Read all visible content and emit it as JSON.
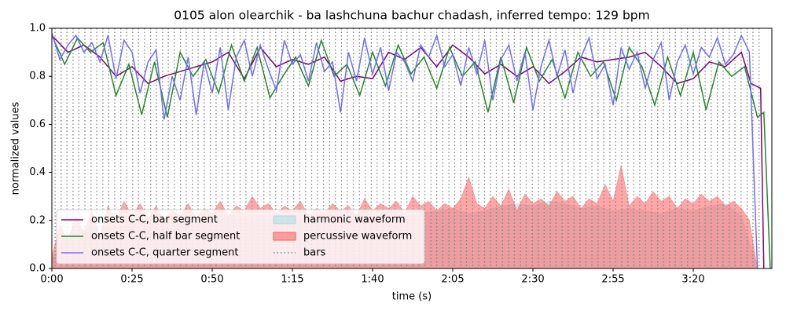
{
  "chart_data": {
    "type": "line",
    "title": "0105 alon olearchik - ba lashchuna bachur chadash, inferred tempo: 129 bpm",
    "xlabel": "time (s)",
    "ylabel": "normalized values",
    "xlim": [
      0,
      224.5
    ],
    "ylim": [
      0,
      1
    ],
    "xticks": [
      {
        "value": 0,
        "label": "0:00"
      },
      {
        "value": 25,
        "label": "0:25"
      },
      {
        "value": 50,
        "label": "0:50"
      },
      {
        "value": 75,
        "label": "1:15"
      },
      {
        "value": 100,
        "label": "1:40"
      },
      {
        "value": 125,
        "label": "2:05"
      },
      {
        "value": 150,
        "label": "2:30"
      },
      {
        "value": 175,
        "label": "2:55"
      },
      {
        "value": 200,
        "label": "3:20"
      }
    ],
    "yticks": [
      {
        "value": 0,
        "label": "0.0"
      },
      {
        "value": 0.2,
        "label": "0.2"
      },
      {
        "value": 0.4,
        "label": "0.4"
      },
      {
        "value": 0.6,
        "label": "0.6"
      },
      {
        "value": 0.8,
        "label": "0.8"
      },
      {
        "value": 1,
        "label": "1.0"
      }
    ],
    "legend": "lower left",
    "series": [
      {
        "name": "onsets C-C, bar segment",
        "kind": "line",
        "color": "#800080",
        "x": [
          0,
          5,
          10,
          15,
          20,
          25,
          30,
          35,
          40,
          45,
          50,
          55,
          60,
          65,
          70,
          75,
          80,
          85,
          90,
          95,
          100,
          105,
          110,
          115,
          120,
          125,
          130,
          135,
          140,
          145,
          150,
          155,
          160,
          165,
          170,
          175,
          180,
          185,
          190,
          195,
          200,
          205,
          210,
          215,
          218,
          221,
          222
        ],
        "values": [
          0.97,
          0.9,
          0.93,
          0.88,
          0.8,
          0.84,
          0.77,
          0.8,
          0.82,
          0.84,
          0.86,
          0.9,
          0.79,
          0.92,
          0.84,
          0.87,
          0.85,
          0.88,
          0.78,
          0.8,
          0.79,
          0.9,
          0.87,
          0.92,
          0.84,
          0.93,
          0.88,
          0.81,
          0.85,
          0.8,
          0.84,
          0.77,
          0.82,
          0.88,
          0.86,
          0.87,
          0.88,
          0.9,
          0.84,
          0.77,
          0.79,
          0.86,
          0.84,
          0.9,
          0.77,
          0.75,
          0.0
        ]
      },
      {
        "name": "onsets C-C, half bar segment",
        "kind": "line",
        "color": "#228b22",
        "x": [
          0,
          4,
          8,
          12,
          16,
          20,
          24,
          28,
          32,
          36,
          40,
          44,
          48,
          52,
          56,
          60,
          64,
          68,
          72,
          76,
          80,
          84,
          88,
          92,
          96,
          100,
          104,
          108,
          112,
          116,
          120,
          124,
          128,
          132,
          136,
          140,
          144,
          148,
          152,
          156,
          160,
          164,
          168,
          172,
          176,
          180,
          184,
          188,
          192,
          196,
          200,
          204,
          208,
          212,
          216,
          220,
          222,
          224
        ],
        "values": [
          0.97,
          0.85,
          0.96,
          0.9,
          0.94,
          0.72,
          0.85,
          0.64,
          0.86,
          0.63,
          0.9,
          0.8,
          0.87,
          0.73,
          0.93,
          0.78,
          0.92,
          0.71,
          0.8,
          0.88,
          0.76,
          0.95,
          0.8,
          0.85,
          0.72,
          0.9,
          0.76,
          0.93,
          0.81,
          0.88,
          0.75,
          0.92,
          0.8,
          0.86,
          0.65,
          0.88,
          0.69,
          0.92,
          0.78,
          0.87,
          0.71,
          0.9,
          0.8,
          0.86,
          0.7,
          0.92,
          0.84,
          0.68,
          0.88,
          0.72,
          0.9,
          0.66,
          0.86,
          0.8,
          0.84,
          0.63,
          0.65,
          0.0
        ]
      },
      {
        "name": "onsets C-C, quarter segment",
        "kind": "line",
        "color": "#6e6eff",
        "x": [
          0,
          2.5,
          5,
          7.5,
          10,
          12.5,
          15,
          17.5,
          20,
          22.5,
          25,
          27.5,
          30,
          32.5,
          35,
          37.5,
          40,
          42.5,
          45,
          47.5,
          50,
          52.5,
          55,
          57.5,
          60,
          62.5,
          65,
          67.5,
          70,
          72.5,
          75,
          77.5,
          80,
          82.5,
          85,
          87.5,
          90,
          92.5,
          95,
          97.5,
          100,
          102.5,
          105,
          107.5,
          110,
          112.5,
          115,
          117.5,
          120,
          122.5,
          125,
          127.5,
          130,
          132.5,
          135,
          137.5,
          140,
          142.5,
          145,
          147.5,
          150,
          152.5,
          155,
          157.5,
          160,
          162.5,
          165,
          167.5,
          170,
          172.5,
          175,
          177.5,
          180,
          182.5,
          185,
          187.5,
          190,
          192.5,
          195,
          197.5,
          200,
          202.5,
          205,
          207.5,
          210,
          212.5,
          215,
          217.5,
          220
        ],
        "values": [
          0.98,
          0.87,
          0.93,
          0.97,
          0.9,
          0.94,
          0.86,
          0.97,
          0.79,
          0.95,
          0.9,
          0.73,
          0.86,
          0.91,
          0.62,
          0.8,
          0.7,
          0.88,
          0.64,
          0.86,
          0.73,
          0.92,
          0.66,
          0.88,
          0.95,
          0.8,
          0.93,
          0.83,
          0.74,
          0.95,
          0.85,
          0.89,
          0.78,
          0.94,
          0.82,
          0.86,
          0.65,
          0.9,
          0.78,
          0.96,
          0.81,
          0.92,
          0.74,
          0.9,
          0.86,
          0.78,
          0.93,
          0.88,
          0.97,
          0.84,
          0.89,
          0.76,
          0.92,
          0.81,
          0.95,
          0.7,
          0.87,
          0.93,
          0.78,
          0.9,
          0.66,
          0.84,
          0.95,
          0.8,
          0.91,
          0.73,
          0.88,
          0.96,
          0.79,
          0.85,
          0.68,
          0.92,
          0.83,
          0.9,
          0.75,
          0.87,
          0.94,
          0.7,
          0.86,
          0.93,
          0.81,
          0.92,
          0.88,
          0.96,
          0.85,
          0.89,
          0.97,
          0.9,
          0.0
        ]
      },
      {
        "name": "harmonic waveform",
        "kind": "area",
        "color": "#add8e6",
        "x": [
          0,
          5,
          10,
          15,
          20,
          25,
          30,
          35,
          40,
          45,
          50,
          55,
          60,
          65,
          70,
          75,
          80,
          85,
          90,
          95,
          100,
          105,
          110,
          115,
          120,
          125,
          130,
          135,
          140,
          145,
          150,
          155,
          160,
          165,
          170,
          175,
          180,
          185,
          190,
          195,
          200,
          205,
          210,
          215,
          220
        ],
        "values": [
          0.04,
          0.14,
          0.16,
          0.18,
          0.17,
          0.19,
          0.18,
          0.2,
          0.19,
          0.21,
          0.2,
          0.22,
          0.21,
          0.22,
          0.2,
          0.22,
          0.21,
          0.23,
          0.22,
          0.23,
          0.21,
          0.24,
          0.22,
          0.23,
          0.24,
          0.25,
          0.23,
          0.24,
          0.26,
          0.27,
          0.26,
          0.28,
          0.27,
          0.25,
          0.26,
          0.24,
          0.25,
          0.24,
          0.23,
          0.25,
          0.24,
          0.26,
          0.27,
          0.22,
          0.0
        ]
      },
      {
        "name": "percussive waveform",
        "kind": "area",
        "color": "#ff5c5c",
        "x": [
          0,
          2.5,
          5,
          7.5,
          10,
          12.5,
          15,
          17.5,
          20,
          22.5,
          25,
          27.5,
          30,
          32.5,
          35,
          37.5,
          40,
          42.5,
          45,
          47.5,
          50,
          52.5,
          55,
          57.5,
          60,
          62.5,
          65,
          67.5,
          70,
          72.5,
          75,
          77.5,
          80,
          82.5,
          85,
          87.5,
          90,
          92.5,
          95,
          97.5,
          100,
          102.5,
          105,
          107.5,
          110,
          112.5,
          115,
          117.5,
          120,
          122.5,
          125,
          127.5,
          130,
          132.5,
          135,
          137.5,
          140,
          142.5,
          145,
          147.5,
          150,
          152.5,
          155,
          157.5,
          160,
          162.5,
          165,
          167.5,
          170,
          172.5,
          175,
          177.5,
          180,
          182.5,
          185,
          187.5,
          190,
          192.5,
          195,
          197.5,
          200,
          202.5,
          205,
          207.5,
          210,
          212.5,
          215,
          217.5,
          220
        ],
        "values": [
          0.05,
          0.18,
          0.12,
          0.22,
          0.15,
          0.24,
          0.13,
          0.26,
          0.2,
          0.28,
          0.22,
          0.27,
          0.21,
          0.26,
          0.2,
          0.24,
          0.22,
          0.27,
          0.21,
          0.25,
          0.23,
          0.28,
          0.22,
          0.26,
          0.24,
          0.3,
          0.25,
          0.27,
          0.23,
          0.26,
          0.24,
          0.28,
          0.22,
          0.25,
          0.23,
          0.27,
          0.24,
          0.26,
          0.22,
          0.29,
          0.24,
          0.27,
          0.25,
          0.28,
          0.23,
          0.3,
          0.26,
          0.28,
          0.24,
          0.27,
          0.25,
          0.29,
          0.38,
          0.27,
          0.25,
          0.3,
          0.26,
          0.33,
          0.24,
          0.31,
          0.27,
          0.29,
          0.26,
          0.32,
          0.28,
          0.3,
          0.25,
          0.29,
          0.27,
          0.35,
          0.28,
          0.43,
          0.26,
          0.3,
          0.27,
          0.32,
          0.28,
          0.3,
          0.25,
          0.29,
          0.27,
          0.31,
          0.28,
          0.3,
          0.26,
          0.28,
          0.25,
          0.2,
          0.0
        ]
      },
      {
        "name": "bars",
        "kind": "vline",
        "color": "#808080",
        "x": [
          1.0,
          2.9,
          4.7,
          6.6,
          8.4,
          10.3,
          12.2,
          14.0,
          15.9,
          17.7,
          19.6,
          21.5,
          23.3,
          25.2,
          27.0,
          28.9,
          30.8,
          32.6,
          34.5,
          36.3,
          38.2,
          40.1,
          41.9,
          43.8,
          45.6,
          47.5,
          49.4,
          51.2,
          53.1,
          54.9,
          56.8,
          58.7,
          60.5,
          62.4,
          64.2,
          66.1,
          68.0,
          69.8,
          71.7,
          73.5,
          75.4,
          77.3,
          79.1,
          81.0,
          82.8,
          84.7,
          86.6,
          88.4,
          90.3,
          92.1,
          94.0,
          95.9,
          97.7,
          99.6,
          101.4,
          103.3,
          105.2,
          107.0,
          108.9,
          110.7,
          112.6,
          114.5,
          116.3,
          118.2,
          120.0,
          121.9,
          123.8,
          125.6,
          127.5,
          129.3,
          131.2,
          133.1,
          134.9,
          136.8,
          138.6,
          140.5,
          142.4,
          144.2,
          146.1,
          147.9,
          149.8,
          151.7,
          153.5,
          155.4,
          157.2,
          159.1,
          161.0,
          162.8,
          164.7,
          166.5,
          168.4,
          170.3,
          172.1,
          174.0,
          175.8,
          177.7,
          179.6,
          181.4,
          183.3,
          185.1,
          187.0,
          188.9,
          190.7,
          192.6,
          194.4,
          196.3,
          198.2,
          200.0,
          201.9,
          203.7,
          205.6,
          207.5,
          209.3,
          211.2,
          213.0,
          214.9,
          216.8,
          218.6,
          220.5
        ]
      }
    ]
  }
}
